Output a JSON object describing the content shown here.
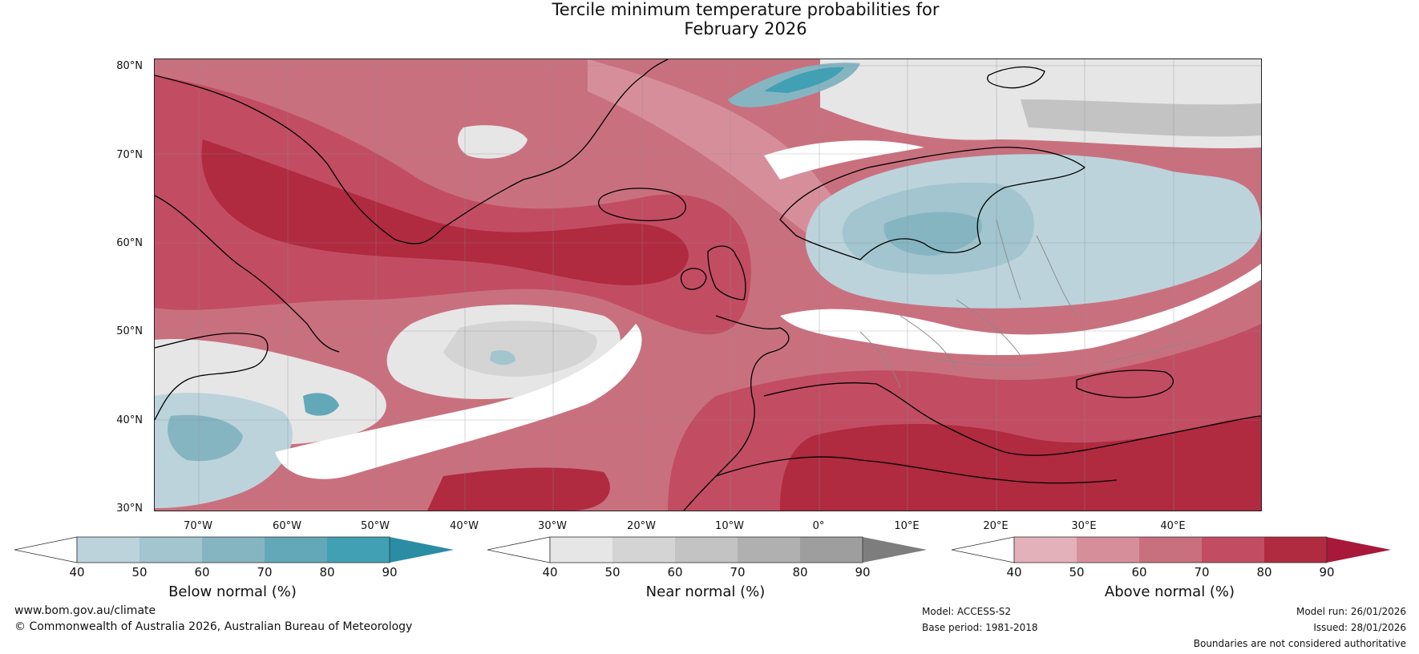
{
  "title": {
    "line1": "Tercile minimum temperature probabilities for",
    "line2": "February 2026"
  },
  "map": {
    "lat_labels": [
      "80°N",
      "70°N",
      "60°N",
      "50°N",
      "40°N",
      "30°N"
    ],
    "lon_labels": [
      "70°W",
      "60°W",
      "50°W",
      "40°W",
      "30°W",
      "20°W",
      "10°W",
      "0°",
      "10°E",
      "20°E",
      "30°E",
      "40°E"
    ],
    "colors": {
      "above": [
        "#e3b1ba",
        "#d78e9b",
        "#c9707f",
        "#c24d62",
        "#b02a40",
        "#a8183a"
      ],
      "near": [
        "#e6e6e6",
        "#d4d4d4",
        "#c3c3c3",
        "#b0b0b0",
        "#9e9e9e",
        "#7d7d7d"
      ],
      "below": [
        "#bcd3db",
        "#a2c5cf",
        "#86b5c2",
        "#62a8b8",
        "#42a0b4",
        "#2a8da4"
      ],
      "coastline": "#000000",
      "border": "#888888"
    }
  },
  "colorbars": [
    {
      "label": "Below normal (%)",
      "ticks": [
        "40",
        "50",
        "60",
        "70",
        "80",
        "90"
      ],
      "colors": [
        "#bcd3db",
        "#a2c5cf",
        "#86b5c2",
        "#62a8b8",
        "#42a0b4"
      ],
      "extend_color": "#2a8da4"
    },
    {
      "label": "Near normal (%)",
      "ticks": [
        "40",
        "50",
        "60",
        "70",
        "80",
        "90"
      ],
      "colors": [
        "#e6e6e6",
        "#d4d4d4",
        "#c3c3c3",
        "#b0b0b0",
        "#9e9e9e"
      ],
      "extend_color": "#7d7d7d"
    },
    {
      "label": "Above normal (%)",
      "ticks": [
        "40",
        "50",
        "60",
        "70",
        "80",
        "90"
      ],
      "colors": [
        "#e3b1ba",
        "#d78e9b",
        "#c9707f",
        "#c24d62",
        "#b02a40"
      ],
      "extend_color": "#a8183a"
    }
  ],
  "footer": {
    "website": "www.bom.gov.au/climate",
    "copyright": "© Commonwealth of Australia 2026, Australian Bureau of Meteorology",
    "model": "Model: ACCESS-S2",
    "base_period": "Base period: 1981-2018",
    "model_run": "Model run: 26/01/2026",
    "issued": "Issued: 28/01/2026",
    "disclaimer": "Boundaries are not considered authoritative"
  }
}
